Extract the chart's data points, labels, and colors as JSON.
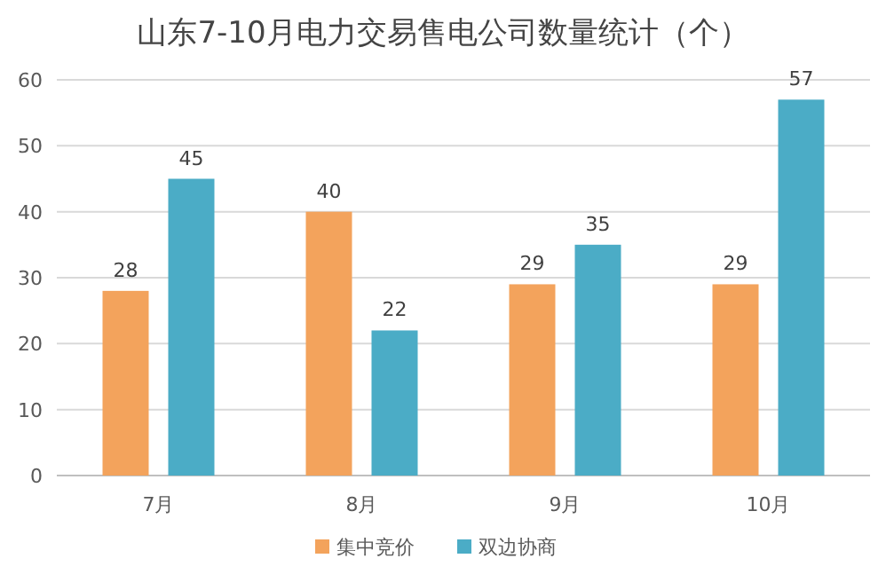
{
  "chart_data": {
    "type": "bar",
    "title": "山东7-10月电力交易售电公司数量统计（个）",
    "categories": [
      "7月",
      "8月",
      "9月",
      "10月"
    ],
    "series": [
      {
        "name": "集中竞价",
        "color": "#f3a35c",
        "values": [
          28,
          40,
          29,
          29
        ]
      },
      {
        "name": "双边协商",
        "color": "#4bacc6",
        "values": [
          45,
          22,
          35,
          57
        ]
      }
    ],
    "ylim": [
      0,
      60
    ],
    "yticks": [
      0,
      10,
      20,
      30,
      40,
      50,
      60
    ],
    "grid": "y",
    "legend": "bottom",
    "data_labels": true
  }
}
